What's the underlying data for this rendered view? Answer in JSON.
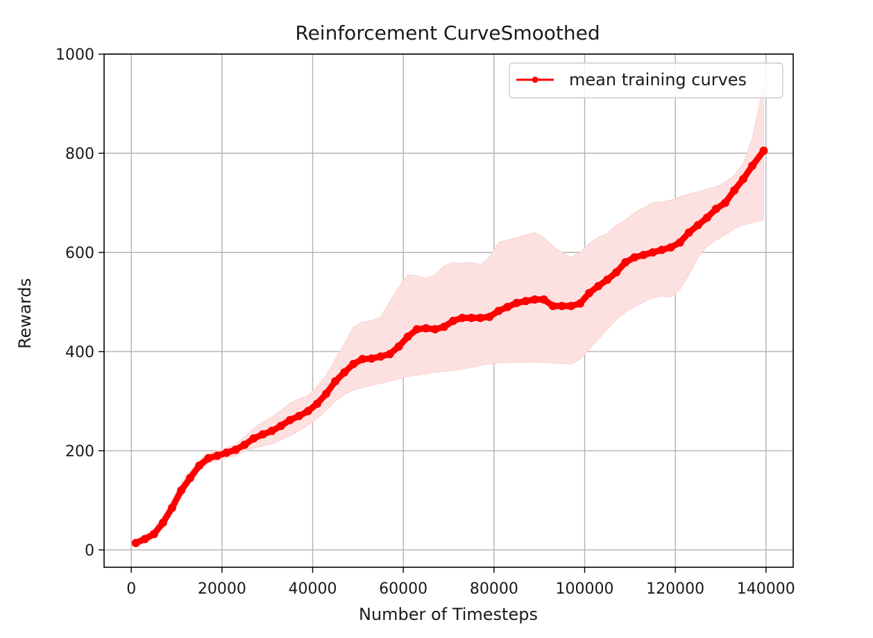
{
  "chart_data": {
    "type": "line",
    "title": "Reinforcement CurveSmoothed",
    "xlabel": "Number of Timesteps",
    "ylabel": "Rewards",
    "xlim": [
      -6000,
      146000
    ],
    "ylim": [
      -35,
      1000
    ],
    "xticks": [
      0,
      20000,
      40000,
      60000,
      80000,
      100000,
      120000,
      140000
    ],
    "yticks": [
      0,
      200,
      400,
      600,
      800,
      1000
    ],
    "grid": true,
    "legend": {
      "position": "top-right",
      "entries": [
        "mean training curves"
      ]
    },
    "colors": {
      "line": "#ff0000",
      "band": "#fde1e1",
      "grid": "#b0b0b0"
    },
    "series": [
      {
        "name": "mean training curves",
        "marker": "circle",
        "x": [
          1000,
          3000,
          5000,
          7000,
          9000,
          11000,
          13000,
          15000,
          17000,
          19000,
          21000,
          23000,
          25000,
          27000,
          29000,
          31000,
          33000,
          35000,
          37000,
          39000,
          41000,
          43000,
          45000,
          47000,
          49000,
          51000,
          53000,
          55000,
          57000,
          59000,
          61000,
          63000,
          65000,
          67000,
          69000,
          71000,
          73000,
          75000,
          77000,
          79000,
          81000,
          83000,
          85000,
          87000,
          89000,
          91000,
          93000,
          95000,
          97000,
          99000,
          101000,
          103000,
          105000,
          107000,
          109000,
          111000,
          113000,
          115000,
          117000,
          119000,
          121000,
          123000,
          125000,
          127000,
          129000,
          131000,
          133000,
          135000,
          137000,
          139500
        ],
        "y": [
          14,
          22,
          32,
          55,
          85,
          120,
          145,
          170,
          185,
          190,
          196,
          202,
          212,
          225,
          233,
          240,
          250,
          262,
          270,
          280,
          295,
          315,
          340,
          358,
          375,
          385,
          386,
          390,
          395,
          410,
          430,
          445,
          447,
          445,
          450,
          462,
          468,
          468,
          468,
          470,
          482,
          490,
          498,
          502,
          505,
          505,
          492,
          492,
          492,
          497,
          518,
          532,
          545,
          560,
          580,
          590,
          595,
          600,
          605,
          610,
          620,
          640,
          655,
          670,
          688,
          700,
          725,
          748,
          775,
          805
        ],
        "band_lower": [
          8,
          15,
          25,
          45,
          75,
          110,
          135,
          162,
          175,
          180,
          186,
          190,
          198,
          205,
          210,
          213,
          222,
          230,
          240,
          252,
          265,
          282,
          300,
          313,
          322,
          328,
          332,
          336,
          340,
          345,
          350,
          352,
          355,
          358,
          360,
          362,
          365,
          368,
          372,
          375,
          377,
          378,
          378,
          378,
          379,
          378,
          377,
          376,
          375,
          385,
          405,
          425,
          445,
          465,
          480,
          490,
          500,
          508,
          512,
          510,
          525,
          555,
          590,
          612,
          625,
          635,
          648,
          655,
          660,
          665
        ],
        "band_upper": [
          20,
          30,
          42,
          68,
          100,
          135,
          160,
          180,
          195,
          200,
          206,
          212,
          228,
          245,
          258,
          268,
          282,
          296,
          304,
          312,
          330,
          352,
          385,
          415,
          450,
          460,
          462,
          470,
          500,
          530,
          555,
          553,
          548,
          555,
          573,
          580,
          578,
          580,
          575,
          590,
          620,
          625,
          630,
          635,
          640,
          630,
          612,
          600,
          590,
          600,
          618,
          630,
          638,
          655,
          665,
          680,
          690,
          700,
          702,
          705,
          712,
          718,
          722,
          728,
          732,
          742,
          755,
          780,
          830,
          940
        ]
      }
    ]
  }
}
